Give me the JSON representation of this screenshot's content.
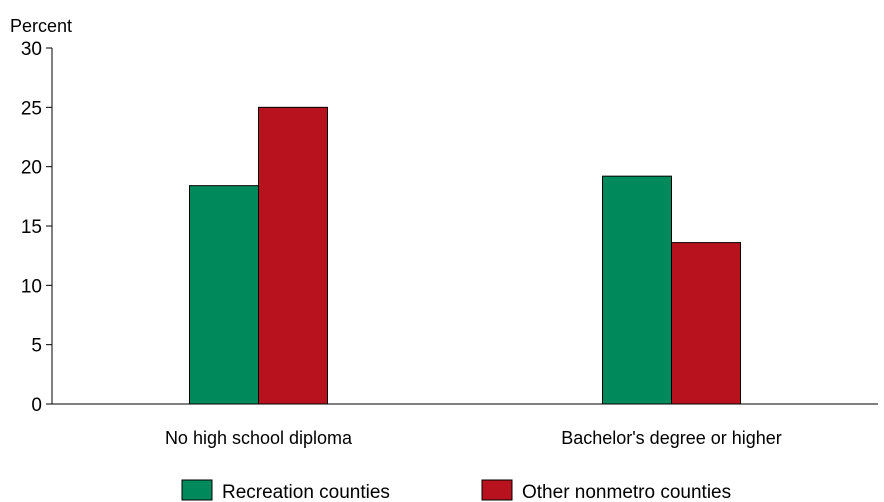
{
  "chart_data": {
    "type": "bar",
    "ylabel": "Percent",
    "ylim": [
      0,
      30
    ],
    "yticks": [
      0,
      5,
      10,
      15,
      20,
      25,
      30
    ],
    "categories": [
      "No high school diploma",
      "Bachelor's degree or higher"
    ],
    "series": [
      {
        "name": "Recreation counties",
        "values": [
          18.4,
          19.2
        ],
        "color": "#00895a"
      },
      {
        "name": "Other nonmetro counties",
        "values": [
          25.0,
          13.6
        ],
        "color": "#b8121e"
      }
    ],
    "legend": "bottom",
    "grid": false
  }
}
